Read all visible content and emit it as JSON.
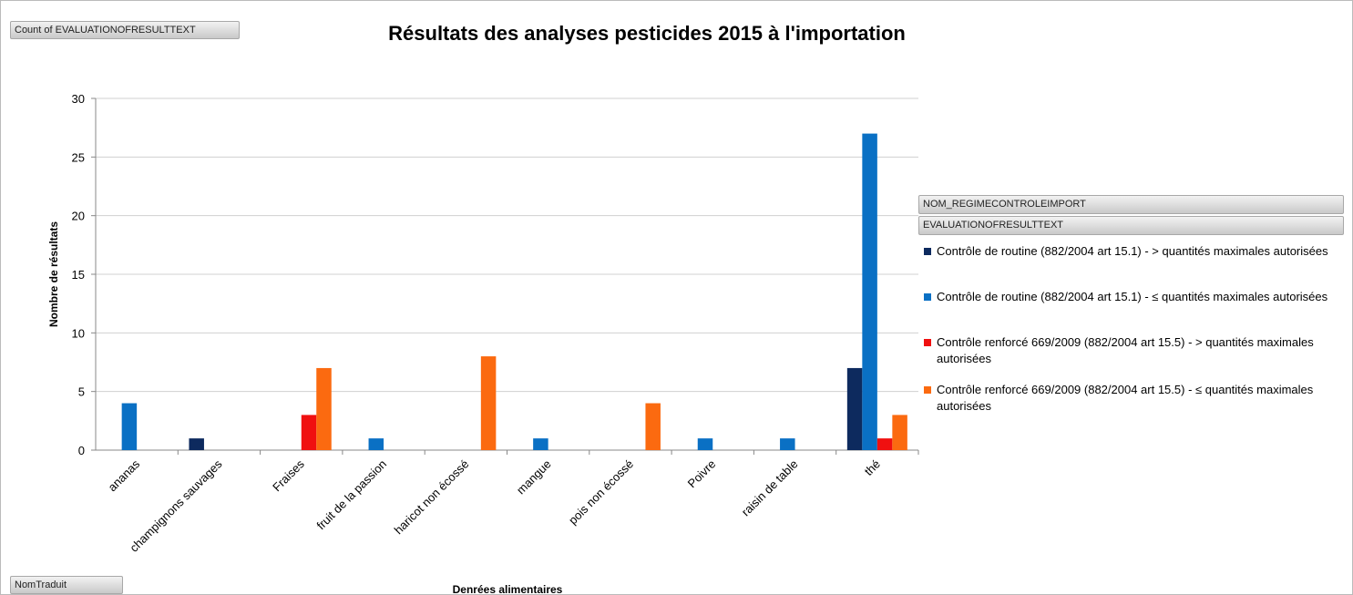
{
  "chart_data": {
    "type": "bar",
    "title": "Résultats des analyses pesticides 2015 à l'importation",
    "x_label": "Denrées alimentaires",
    "y_label": "Nombre de résultats",
    "value_field": "Count of EVALUATIONOFRESULTTEXT",
    "filter_field": "NOM_REGIMECONTROLEIMPORT",
    "legend_field": "EVALUATIONOFRESULTTEXT",
    "axis_field": "NomTraduit",
    "categories": [
      "ananas",
      "champignons sauvages",
      "Fraises",
      "fruit de la passion",
      "haricot non écossé",
      "mangue",
      "pois non écossé",
      "Poivre",
      "raisin de table",
      "thé"
    ],
    "series": [
      {
        "name": "Contrôle de routine (882/2004 art 15.1) - > quantités maximales autorisées",
        "color": "#0d2a5e",
        "values": [
          null,
          1,
          null,
          null,
          null,
          null,
          null,
          null,
          null,
          7
        ]
      },
      {
        "name": "Contrôle de routine (882/2004 art 15.1) - ≤ quantités maximales autorisées",
        "color": "#0a70c4",
        "values": [
          4,
          null,
          null,
          1,
          null,
          1,
          null,
          1,
          1,
          27
        ]
      },
      {
        "name": "Contrôle renforcé 669/2009 (882/2004 art 15.5) - > quantités maximales autorisées",
        "color": "#f01010",
        "values": [
          null,
          null,
          3,
          null,
          null,
          null,
          null,
          null,
          null,
          1
        ]
      },
      {
        "name": "Contrôle renforcé 669/2009 (882/2004 art 15.5) - ≤ quantités maximales autorisées",
        "color": "#fb6a10",
        "values": [
          null,
          null,
          7,
          null,
          8,
          null,
          4,
          null,
          null,
          3
        ]
      }
    ],
    "ylim": [
      0,
      30
    ],
    "yticks": [
      0,
      5,
      10,
      15,
      20,
      25,
      30
    ],
    "grid": true
  }
}
